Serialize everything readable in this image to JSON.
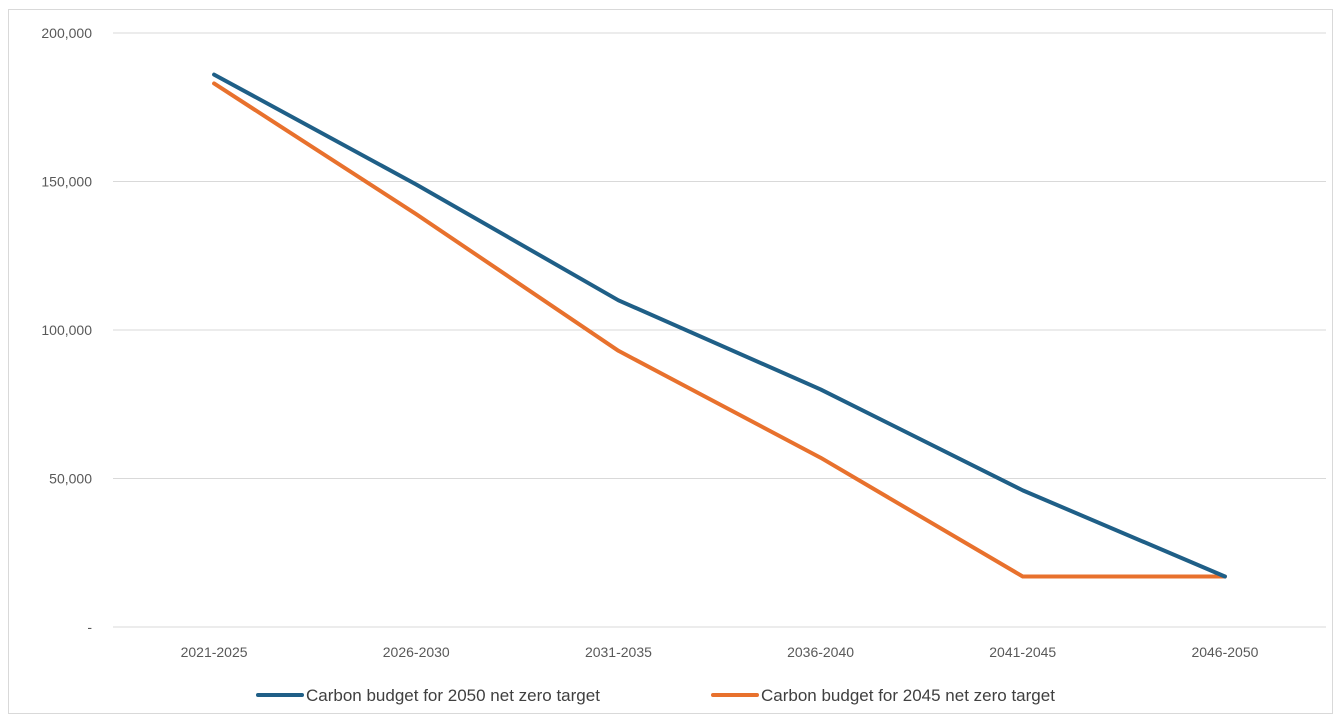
{
  "chart_data": {
    "type": "line",
    "title": "",
    "xlabel": "",
    "ylabel": "",
    "categories": [
      "2021-2025",
      "2026-2030",
      "2031-2035",
      "2036-2040",
      "2041-2045",
      "2046-2050"
    ],
    "ylim": [
      0,
      200000
    ],
    "yticks": [
      0,
      50000,
      100000,
      150000,
      200000
    ],
    "ytick_labels": [
      "-",
      "50,000",
      "100,000",
      "150,000",
      "200,000"
    ],
    "grid": true,
    "legend_position": "bottom",
    "series": [
      {
        "name": "Carbon budget for 2050 net zero target",
        "color": "#1f5f87",
        "values": [
          186000,
          149000,
          110000,
          80000,
          46000,
          17000
        ]
      },
      {
        "name": "Carbon budget for 2045 net zero target",
        "color": "#e8712d",
        "values": [
          183000,
          139000,
          93000,
          57000,
          17000,
          17000
        ]
      }
    ]
  }
}
